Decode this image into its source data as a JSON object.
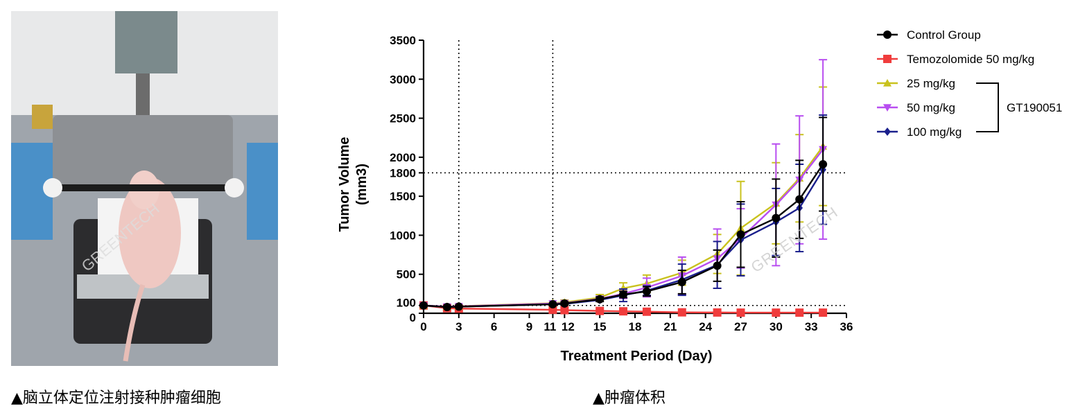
{
  "captions": {
    "left": "▲脑立体定位注射接种肿瘤细胞",
    "right": "▲肿瘤体积"
  },
  "watermark": "GREENTECH",
  "group_label": "GT190051",
  "colors": {
    "control": "#000000",
    "temozolomide": "#f03c3c",
    "dose25": "#c9c21e",
    "dose50": "#b84ef0",
    "dose100": "#1a1f8c"
  },
  "chart_data": {
    "type": "line",
    "xlabel": "Treatment Period (Day)",
    "ylabel_line1": "Tumor Volume",
    "ylabel_line2": "(mm3)",
    "xlim": [
      0,
      36
    ],
    "ylim": [
      0,
      3500
    ],
    "xticks": [
      0,
      3,
      6,
      9,
      11,
      12,
      15,
      18,
      21,
      24,
      27,
      30,
      33,
      36
    ],
    "yticks": [
      0,
      100,
      500,
      1000,
      1500,
      1800,
      2000,
      2500,
      3000,
      3500
    ],
    "reference_lines": {
      "x": [
        3,
        11
      ],
      "y": [
        100,
        1800
      ]
    },
    "series": [
      {
        "name": "Control Group",
        "key": "control",
        "marker": "circle",
        "points": [
          [
            0,
            100
          ],
          [
            2,
            80
          ],
          [
            3,
            85
          ],
          [
            11,
            115
          ],
          [
            12,
            125
          ],
          [
            15,
            180
          ],
          [
            17,
            240
          ],
          [
            19,
            280
          ],
          [
            22,
            400
          ],
          [
            25,
            610
          ],
          [
            27,
            1010
          ],
          [
            30,
            1220
          ],
          [
            32,
            1460
          ],
          [
            34,
            1910
          ]
        ],
        "errors": [
          0,
          0,
          0,
          0,
          20,
          30,
          40,
          60,
          150,
          200,
          420,
          500,
          500,
          600
        ]
      },
      {
        "name": "Temozolomide 50 mg/kg",
        "key": "temozolomide",
        "marker": "square",
        "points": [
          [
            0,
            100
          ],
          [
            2,
            65
          ],
          [
            3,
            60
          ],
          [
            11,
            45
          ],
          [
            12,
            40
          ],
          [
            15,
            30
          ],
          [
            17,
            25
          ],
          [
            19,
            20
          ],
          [
            22,
            12
          ],
          [
            25,
            10
          ],
          [
            27,
            8
          ],
          [
            30,
            8
          ],
          [
            32,
            8
          ],
          [
            34,
            8
          ]
        ],
        "errors": [
          0,
          0,
          0,
          0,
          0,
          0,
          0,
          0,
          0,
          0,
          0,
          0,
          0,
          0
        ]
      },
      {
        "name": "25 mg/kg",
        "key": "dose25",
        "marker": "triangle-up",
        "points": [
          [
            0,
            100
          ],
          [
            2,
            85
          ],
          [
            3,
            90
          ],
          [
            11,
            130
          ],
          [
            12,
            140
          ],
          [
            15,
            200
          ],
          [
            17,
            320
          ],
          [
            19,
            380
          ],
          [
            22,
            520
          ],
          [
            25,
            760
          ],
          [
            27,
            1090
          ],
          [
            30,
            1410
          ],
          [
            32,
            1730
          ],
          [
            34,
            2140
          ]
        ],
        "errors": [
          0,
          0,
          0,
          0,
          30,
          40,
          70,
          110,
          160,
          250,
          600,
          520,
          560,
          760
        ]
      },
      {
        "name": "50 mg/kg",
        "key": "dose50",
        "marker": "triangle-down",
        "points": [
          [
            0,
            100
          ],
          [
            2,
            85
          ],
          [
            3,
            88
          ],
          [
            11,
            125
          ],
          [
            12,
            130
          ],
          [
            15,
            185
          ],
          [
            17,
            250
          ],
          [
            19,
            330
          ],
          [
            22,
            480
          ],
          [
            25,
            700
          ],
          [
            27,
            960
          ],
          [
            30,
            1390
          ],
          [
            32,
            1710
          ],
          [
            34,
            2100
          ]
        ],
        "errors": [
          0,
          0,
          0,
          0,
          0,
          0,
          60,
          120,
          240,
          380,
          380,
          780,
          820,
          1150
        ]
      },
      {
        "name": "100 mg/kg",
        "key": "dose100",
        "marker": "diamond",
        "points": [
          [
            0,
            100
          ],
          [
            2,
            80
          ],
          [
            3,
            85
          ],
          [
            11,
            115
          ],
          [
            12,
            120
          ],
          [
            15,
            170
          ],
          [
            17,
            230
          ],
          [
            19,
            290
          ],
          [
            22,
            430
          ],
          [
            25,
            620
          ],
          [
            27,
            940
          ],
          [
            30,
            1170
          ],
          [
            32,
            1350
          ],
          [
            34,
            1840
          ]
        ],
        "errors": [
          0,
          0,
          0,
          0,
          0,
          0,
          80,
          60,
          200,
          300,
          460,
          430,
          560,
          700
        ]
      }
    ],
    "legend_position": "right"
  }
}
